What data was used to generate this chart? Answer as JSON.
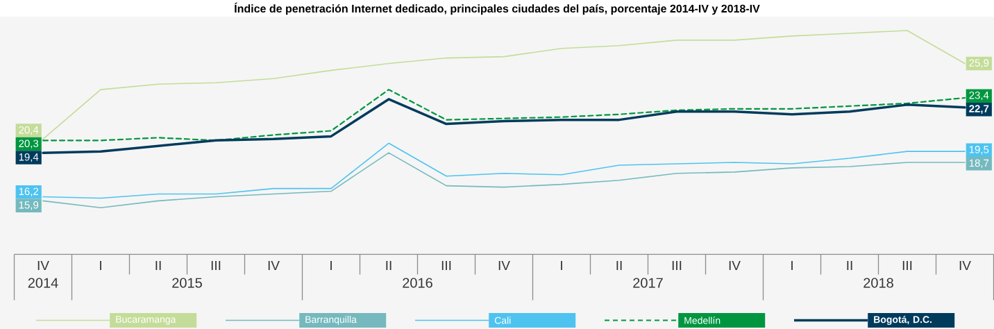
{
  "chart_data": {
    "type": "line",
    "title": "Índice de penetración Internet dedicado, principales ciudades del país, porcentaje 2014-IV y 2018-IV",
    "categories": [
      "IV",
      "I",
      "II",
      "III",
      "IV",
      "I",
      "II",
      "III",
      "IV",
      "I",
      "II",
      "III",
      "IV",
      "I",
      "II",
      "III",
      "IV"
    ],
    "series": [
      {
        "name": "Bucaramanga",
        "color": "#c4dc99",
        "values": [
          20.4,
          24.0,
          24.4,
          24.5,
          24.8,
          25.4,
          25.9,
          26.3,
          26.4,
          27.0,
          27.2,
          27.6,
          27.6,
          27.9,
          28.1,
          28.3,
          25.9
        ],
        "value_labels": [
          "20,4",
          null,
          null,
          null,
          null,
          null,
          null,
          null,
          null,
          null,
          null,
          null,
          null,
          null,
          null,
          null,
          "25,9"
        ]
      },
      {
        "name": "Barranquilla",
        "color": "#75b9be",
        "values": [
          15.9,
          15.4,
          15.9,
          16.2,
          16.4,
          16.6,
          19.4,
          17.0,
          16.9,
          17.1,
          17.4,
          17.9,
          18.0,
          18.3,
          18.4,
          18.7,
          18.7
        ],
        "value_labels": [
          "15,9",
          null,
          null,
          null,
          null,
          null,
          null,
          null,
          null,
          null,
          null,
          null,
          null,
          null,
          null,
          null,
          "18,7"
        ]
      },
      {
        "name": "Cali",
        "color": "#4ec3f0",
        "values": [
          16.2,
          16.1,
          16.4,
          16.4,
          16.8,
          16.8,
          20.1,
          17.7,
          17.9,
          17.8,
          18.5,
          18.6,
          18.7,
          18.6,
          19.0,
          19.5,
          19.5
        ],
        "value_labels": [
          "16,2",
          null,
          null,
          null,
          null,
          null,
          null,
          null,
          null,
          null,
          null,
          null,
          null,
          null,
          null,
          null,
          "19,5"
        ]
      },
      {
        "name": "Medellín",
        "color": "#009640",
        "line_style": "dashed",
        "values": [
          20.3,
          20.3,
          20.5,
          20.3,
          20.7,
          21.0,
          24.0,
          21.8,
          21.9,
          22.0,
          22.2,
          22.5,
          22.6,
          22.6,
          22.8,
          23.0,
          23.4
        ],
        "value_labels": [
          "20,3",
          null,
          null,
          null,
          null,
          null,
          null,
          null,
          null,
          null,
          null,
          null,
          null,
          null,
          null,
          null,
          "23,4"
        ]
      },
      {
        "name": "Bogotá, D.C.",
        "color": "#003b5c",
        "values": [
          19.4,
          19.5,
          19.9,
          20.3,
          20.4,
          20.6,
          23.3,
          21.5,
          21.7,
          21.8,
          21.8,
          22.4,
          22.4,
          22.2,
          22.4,
          22.9,
          22.7
        ],
        "value_labels": [
          "19,4",
          null,
          null,
          null,
          null,
          null,
          null,
          null,
          null,
          null,
          null,
          null,
          null,
          null,
          null,
          null,
          "22,7"
        ]
      }
    ],
    "annotations": [
      "2014",
      "2015",
      "2016",
      "2017",
      "2018"
    ],
    "tick_labels": "x",
    "legend": "bottom"
  }
}
